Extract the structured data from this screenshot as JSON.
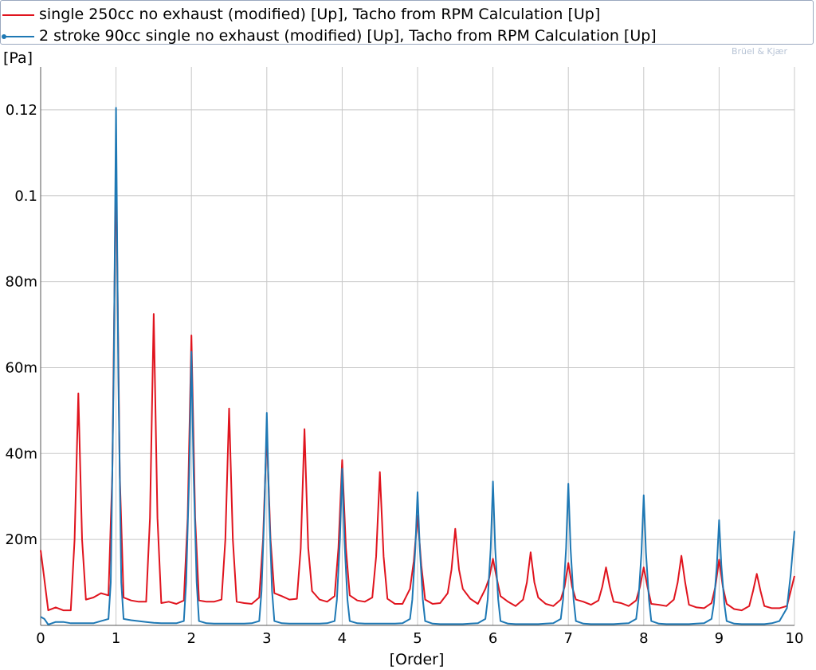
{
  "brand": "Brüel & Kjær",
  "chart_data": {
    "type": "line",
    "title": "",
    "xlabel": "[Order]",
    "ylabel": "[Pa]",
    "xlim": [
      0,
      10
    ],
    "ylim": [
      0,
      0.13
    ],
    "x_ticks": [
      0,
      1,
      2,
      3,
      4,
      5,
      6,
      7,
      8,
      9,
      10
    ],
    "x_tick_labels": [
      "0",
      "1",
      "2",
      "3",
      "4",
      "5",
      "6",
      "7",
      "8",
      "9",
      "10"
    ],
    "y_ticks": [
      0.02,
      0.04,
      0.06,
      0.08,
      0.1,
      0.12
    ],
    "y_tick_labels": [
      "20m",
      "40m",
      "60m",
      "80m",
      "0.1",
      "0.12"
    ],
    "grid": true,
    "legend_position": "top",
    "series": [
      {
        "name": "single 250cc no exhaust (modified) [Up], Tacho from RPM Calculation [Up]",
        "color": "#e0141e",
        "points": [
          [
            0,
            0.0175
          ],
          [
            0.04,
            0.012
          ],
          [
            0.1,
            0.0035
          ],
          [
            0.2,
            0.0042
          ],
          [
            0.3,
            0.0035
          ],
          [
            0.4,
            0.0035
          ],
          [
            0.45,
            0.02
          ],
          [
            0.5,
            0.054
          ],
          [
            0.55,
            0.02
          ],
          [
            0.6,
            0.006
          ],
          [
            0.7,
            0.0065
          ],
          [
            0.8,
            0.0075
          ],
          [
            0.9,
            0.007
          ],
          [
            0.95,
            0.035
          ],
          [
            1.0,
            0.108
          ],
          [
            1.05,
            0.035
          ],
          [
            1.1,
            0.0065
          ],
          [
            1.2,
            0.0058
          ],
          [
            1.3,
            0.0055
          ],
          [
            1.4,
            0.0055
          ],
          [
            1.45,
            0.025
          ],
          [
            1.5,
            0.0725
          ],
          [
            1.55,
            0.025
          ],
          [
            1.6,
            0.0052
          ],
          [
            1.7,
            0.0055
          ],
          [
            1.8,
            0.005
          ],
          [
            1.9,
            0.0058
          ],
          [
            1.95,
            0.025
          ],
          [
            2.0,
            0.0675
          ],
          [
            2.05,
            0.025
          ],
          [
            2.1,
            0.0058
          ],
          [
            2.2,
            0.0055
          ],
          [
            2.3,
            0.0055
          ],
          [
            2.4,
            0.006
          ],
          [
            2.45,
            0.02
          ],
          [
            2.5,
            0.0505
          ],
          [
            2.55,
            0.02
          ],
          [
            2.6,
            0.0055
          ],
          [
            2.7,
            0.0052
          ],
          [
            2.8,
            0.005
          ],
          [
            2.9,
            0.0065
          ],
          [
            2.95,
            0.02
          ],
          [
            3.0,
            0.045
          ],
          [
            3.05,
            0.02
          ],
          [
            3.1,
            0.0075
          ],
          [
            3.2,
            0.0068
          ],
          [
            3.3,
            0.006
          ],
          [
            3.4,
            0.0062
          ],
          [
            3.45,
            0.018
          ],
          [
            3.5,
            0.0457
          ],
          [
            3.55,
            0.018
          ],
          [
            3.6,
            0.008
          ],
          [
            3.7,
            0.006
          ],
          [
            3.8,
            0.0055
          ],
          [
            3.9,
            0.0068
          ],
          [
            3.95,
            0.018
          ],
          [
            4.0,
            0.0385
          ],
          [
            4.05,
            0.018
          ],
          [
            4.1,
            0.007
          ],
          [
            4.2,
            0.0058
          ],
          [
            4.3,
            0.0055
          ],
          [
            4.4,
            0.0065
          ],
          [
            4.45,
            0.016
          ],
          [
            4.5,
            0.0357
          ],
          [
            4.55,
            0.016
          ],
          [
            4.6,
            0.0062
          ],
          [
            4.7,
            0.005
          ],
          [
            4.8,
            0.005
          ],
          [
            4.9,
            0.0085
          ],
          [
            4.95,
            0.015
          ],
          [
            5.0,
            0.0255
          ],
          [
            5.05,
            0.014
          ],
          [
            5.1,
            0.006
          ],
          [
            5.2,
            0.005
          ],
          [
            5.3,
            0.0052
          ],
          [
            5.4,
            0.0075
          ],
          [
            5.45,
            0.013
          ],
          [
            5.5,
            0.0225
          ],
          [
            5.55,
            0.013
          ],
          [
            5.6,
            0.0085
          ],
          [
            5.7,
            0.0062
          ],
          [
            5.8,
            0.005
          ],
          [
            5.9,
            0.0085
          ],
          [
            5.95,
            0.011
          ],
          [
            6.0,
            0.0155
          ],
          [
            6.05,
            0.011
          ],
          [
            6.1,
            0.0068
          ],
          [
            6.2,
            0.0055
          ],
          [
            6.3,
            0.0045
          ],
          [
            6.4,
            0.006
          ],
          [
            6.45,
            0.01
          ],
          [
            6.5,
            0.017
          ],
          [
            6.55,
            0.01
          ],
          [
            6.6,
            0.0065
          ],
          [
            6.7,
            0.005
          ],
          [
            6.8,
            0.0045
          ],
          [
            6.9,
            0.006
          ],
          [
            6.95,
            0.009
          ],
          [
            7.0,
            0.0145
          ],
          [
            7.05,
            0.009
          ],
          [
            7.1,
            0.006
          ],
          [
            7.2,
            0.0055
          ],
          [
            7.3,
            0.0048
          ],
          [
            7.4,
            0.0058
          ],
          [
            7.45,
            0.009
          ],
          [
            7.5,
            0.0135
          ],
          [
            7.55,
            0.009
          ],
          [
            7.6,
            0.0055
          ],
          [
            7.7,
            0.0052
          ],
          [
            7.8,
            0.0045
          ],
          [
            7.9,
            0.0058
          ],
          [
            7.95,
            0.009
          ],
          [
            8.0,
            0.0135
          ],
          [
            8.05,
            0.009
          ],
          [
            8.1,
            0.005
          ],
          [
            8.2,
            0.0048
          ],
          [
            8.3,
            0.0045
          ],
          [
            8.4,
            0.006
          ],
          [
            8.45,
            0.01
          ],
          [
            8.5,
            0.0162
          ],
          [
            8.55,
            0.01
          ],
          [
            8.6,
            0.0048
          ],
          [
            8.7,
            0.0042
          ],
          [
            8.8,
            0.004
          ],
          [
            8.9,
            0.0052
          ],
          [
            8.95,
            0.009
          ],
          [
            9.0,
            0.0153
          ],
          [
            9.05,
            0.009
          ],
          [
            9.1,
            0.005
          ],
          [
            9.2,
            0.0038
          ],
          [
            9.3,
            0.0035
          ],
          [
            9.4,
            0.0045
          ],
          [
            9.45,
            0.008
          ],
          [
            9.5,
            0.012
          ],
          [
            9.55,
            0.008
          ],
          [
            9.6,
            0.0045
          ],
          [
            9.7,
            0.004
          ],
          [
            9.8,
            0.004
          ],
          [
            9.9,
            0.0045
          ],
          [
            9.95,
            0.008
          ],
          [
            10.0,
            0.0115
          ]
        ]
      },
      {
        "name": "2 stroke 90cc single no exhaust (modified) [Up], Tacho from RPM Calculation [Up]",
        "color": "#1e78b4",
        "points": [
          [
            0,
            0.002
          ],
          [
            0.05,
            0.0015
          ],
          [
            0.1,
            0.0002
          ],
          [
            0.2,
            0.0008
          ],
          [
            0.3,
            0.0008
          ],
          [
            0.4,
            0.0005
          ],
          [
            0.5,
            0.0005
          ],
          [
            0.6,
            0.0005
          ],
          [
            0.7,
            0.0005
          ],
          [
            0.8,
            0.001
          ],
          [
            0.9,
            0.0015
          ],
          [
            0.93,
            0.01
          ],
          [
            0.97,
            0.06
          ],
          [
            1.0,
            0.1205
          ],
          [
            1.03,
            0.06
          ],
          [
            1.07,
            0.01
          ],
          [
            1.1,
            0.0015
          ],
          [
            1.2,
            0.0012
          ],
          [
            1.3,
            0.001
          ],
          [
            1.4,
            0.0008
          ],
          [
            1.5,
            0.0006
          ],
          [
            1.6,
            0.0005
          ],
          [
            1.7,
            0.0005
          ],
          [
            1.8,
            0.0005
          ],
          [
            1.9,
            0.001
          ],
          [
            1.93,
            0.01
          ],
          [
            1.97,
            0.035
          ],
          [
            2.0,
            0.0637
          ],
          [
            2.03,
            0.035
          ],
          [
            2.07,
            0.01
          ],
          [
            2.1,
            0.001
          ],
          [
            2.2,
            0.0005
          ],
          [
            2.3,
            0.0004
          ],
          [
            2.4,
            0.0004
          ],
          [
            2.5,
            0.0004
          ],
          [
            2.6,
            0.0004
          ],
          [
            2.7,
            0.0004
          ],
          [
            2.8,
            0.0005
          ],
          [
            2.9,
            0.001
          ],
          [
            2.93,
            0.008
          ],
          [
            2.97,
            0.028
          ],
          [
            3.0,
            0.0495
          ],
          [
            3.03,
            0.028
          ],
          [
            3.07,
            0.008
          ],
          [
            3.1,
            0.001
          ],
          [
            3.2,
            0.0005
          ],
          [
            3.3,
            0.0004
          ],
          [
            3.4,
            0.0004
          ],
          [
            3.5,
            0.0004
          ],
          [
            3.6,
            0.0004
          ],
          [
            3.7,
            0.0004
          ],
          [
            3.8,
            0.0005
          ],
          [
            3.9,
            0.001
          ],
          [
            3.93,
            0.006
          ],
          [
            3.97,
            0.02
          ],
          [
            4.0,
            0.0365
          ],
          [
            4.03,
            0.02
          ],
          [
            4.07,
            0.006
          ],
          [
            4.1,
            0.001
          ],
          [
            4.2,
            0.0005
          ],
          [
            4.3,
            0.0004
          ],
          [
            4.4,
            0.0004
          ],
          [
            4.5,
            0.0004
          ],
          [
            4.6,
            0.0004
          ],
          [
            4.7,
            0.0004
          ],
          [
            4.8,
            0.0005
          ],
          [
            4.9,
            0.0015
          ],
          [
            4.93,
            0.006
          ],
          [
            4.97,
            0.018
          ],
          [
            5.0,
            0.031
          ],
          [
            5.03,
            0.018
          ],
          [
            5.07,
            0.006
          ],
          [
            5.1,
            0.001
          ],
          [
            5.2,
            0.0004
          ],
          [
            5.3,
            0.0003
          ],
          [
            5.4,
            0.0003
          ],
          [
            5.5,
            0.0003
          ],
          [
            5.6,
            0.0003
          ],
          [
            5.7,
            0.0004
          ],
          [
            5.8,
            0.0005
          ],
          [
            5.9,
            0.0015
          ],
          [
            5.93,
            0.006
          ],
          [
            5.97,
            0.018
          ],
          [
            6.0,
            0.0335
          ],
          [
            6.03,
            0.018
          ],
          [
            6.07,
            0.006
          ],
          [
            6.1,
            0.001
          ],
          [
            6.2,
            0.0004
          ],
          [
            6.3,
            0.0003
          ],
          [
            6.4,
            0.0003
          ],
          [
            6.5,
            0.0003
          ],
          [
            6.6,
            0.0003
          ],
          [
            6.7,
            0.0004
          ],
          [
            6.8,
            0.0005
          ],
          [
            6.9,
            0.0015
          ],
          [
            6.93,
            0.006
          ],
          [
            6.97,
            0.018
          ],
          [
            7.0,
            0.033
          ],
          [
            7.03,
            0.018
          ],
          [
            7.07,
            0.006
          ],
          [
            7.1,
            0.001
          ],
          [
            7.2,
            0.0004
          ],
          [
            7.3,
            0.0003
          ],
          [
            7.4,
            0.0003
          ],
          [
            7.5,
            0.0003
          ],
          [
            7.6,
            0.0003
          ],
          [
            7.7,
            0.0004
          ],
          [
            7.8,
            0.0005
          ],
          [
            7.9,
            0.0015
          ],
          [
            7.93,
            0.006
          ],
          [
            7.97,
            0.017
          ],
          [
            8.0,
            0.0303
          ],
          [
            8.03,
            0.017
          ],
          [
            8.07,
            0.006
          ],
          [
            8.1,
            0.001
          ],
          [
            8.2,
            0.0004
          ],
          [
            8.3,
            0.0003
          ],
          [
            8.4,
            0.0003
          ],
          [
            8.5,
            0.0003
          ],
          [
            8.6,
            0.0003
          ],
          [
            8.7,
            0.0004
          ],
          [
            8.8,
            0.0005
          ],
          [
            8.9,
            0.0015
          ],
          [
            8.93,
            0.005
          ],
          [
            8.97,
            0.014
          ],
          [
            9.0,
            0.0245
          ],
          [
            9.03,
            0.014
          ],
          [
            9.07,
            0.005
          ],
          [
            9.1,
            0.001
          ],
          [
            9.2,
            0.0004
          ],
          [
            9.3,
            0.0003
          ],
          [
            9.4,
            0.0003
          ],
          [
            9.5,
            0.0003
          ],
          [
            9.6,
            0.0003
          ],
          [
            9.7,
            0.0005
          ],
          [
            9.8,
            0.001
          ],
          [
            9.9,
            0.004
          ],
          [
            9.95,
            0.012
          ],
          [
            10.0,
            0.022
          ]
        ]
      }
    ]
  }
}
